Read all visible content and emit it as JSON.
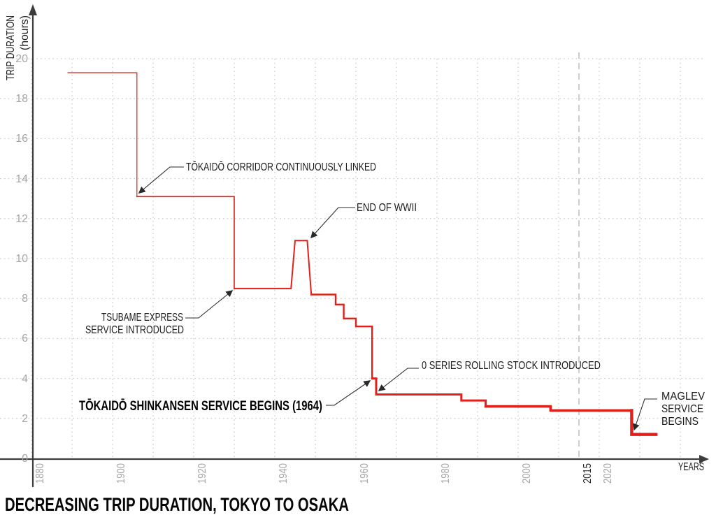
{
  "title": "DECREASING TRIP DURATION, TOKYO TO OSAKA",
  "axes": {
    "x_label": "YEARS",
    "y_label_line1": "TRIP DURATION",
    "y_label_line2": "(hours)"
  },
  "chart_data": {
    "type": "line",
    "subtype": "step",
    "title": "DECREASING TRIP DURATION, TOKYO TO OSAKA",
    "xlabel": "YEARS",
    "ylabel": "TRIP DURATION (hours)",
    "xlim": [
      1880,
      2040
    ],
    "ylim": [
      0,
      20
    ],
    "grid": "dotted, 10-year verticals, 2-hour horizontals",
    "legend_position": "none",
    "line_color": "#e0201a",
    "grid_color": "#cccccc",
    "axis_color": "#3c3c3c",
    "tick_color": "#a6a6a6",
    "reference_line": {
      "year": 2015,
      "style": "dashed",
      "color": "#b9b9b9"
    },
    "x_ticks": [
      "1880",
      "1900",
      "1920",
      "1940",
      "1960",
      "1980",
      "2000",
      "2015",
      "2020"
    ],
    "y_ticks": [
      "0",
      "2",
      "4",
      "6",
      "8",
      "10",
      "12",
      "14",
      "16",
      "18",
      "20"
    ],
    "segments": [
      {
        "width": 1.2,
        "points": [
          [
            1889,
            19.3
          ],
          [
            1906,
            19.3
          ],
          [
            1906,
            13.1
          ]
        ]
      },
      {
        "width": 1.6,
        "points": [
          [
            1906,
            13.1
          ],
          [
            1930,
            13.1
          ],
          [
            1930,
            8.5
          ]
        ]
      },
      {
        "width": 2.0,
        "points": [
          [
            1930,
            8.5
          ],
          [
            1944,
            8.5
          ],
          [
            1945,
            10.9
          ],
          [
            1948,
            10.9
          ],
          [
            1949,
            8.2
          ]
        ]
      },
      {
        "width": 2.4,
        "points": [
          [
            1949,
            8.2
          ],
          [
            1955,
            8.2
          ],
          [
            1955,
            7.7
          ],
          [
            1957,
            7.7
          ],
          [
            1957,
            7.0
          ],
          [
            1960,
            7.0
          ],
          [
            1960,
            6.6
          ],
          [
            1964,
            6.6
          ],
          [
            1964,
            4.0
          ]
        ]
      },
      {
        "width": 3.0,
        "points": [
          [
            1964,
            4.0
          ],
          [
            1965,
            4.0
          ],
          [
            1965,
            3.2
          ],
          [
            1986,
            3.2
          ],
          [
            1986,
            2.9
          ],
          [
            1992,
            2.9
          ],
          [
            1992,
            2.6
          ]
        ]
      },
      {
        "width": 3.6,
        "points": [
          [
            1992,
            2.6
          ],
          [
            2008,
            2.6
          ],
          [
            2008,
            2.4
          ],
          [
            2028,
            2.4
          ]
        ]
      },
      {
        "width": 4.4,
        "points": [
          [
            2028,
            2.4
          ],
          [
            2028,
            1.2
          ],
          [
            2034,
            1.2
          ]
        ]
      }
    ],
    "annotations": [
      {
        "label": "TŌKAIDŌ CORRIDOR CONTINUOUSLY LINKED",
        "target_year": 1906,
        "target_hours": 13.1
      },
      {
        "label": "TSUBAME EXPRESS SERVICE INTRODUCED",
        "target_year": 1930,
        "target_hours": 8.5
      },
      {
        "label": "END OF WWII",
        "target_year": 1948,
        "target_hours": 10.9
      },
      {
        "label": "TŌKAIDŌ SHINKANSEN SERVICE BEGINS (1964)",
        "target_year": 1964,
        "target_hours": 4.0
      },
      {
        "label": "0 SERIES ROLLING STOCK INTRODUCED",
        "target_year": 1965,
        "target_hours": 3.2
      },
      {
        "label": "MAGLEV SERVICE BEGINS",
        "target_year": 2028,
        "target_hours": 1.2
      }
    ]
  },
  "annotation_text": {
    "corridor": "TŌKAIDŌ CORRIDOR CONTINUOUSLY LINKED",
    "tsubame_line1": "TSUBAME EXPRESS",
    "tsubame_line2": "SERVICE INTRODUCED",
    "wwii": "END OF WWII",
    "shinkansen": "TŌKAIDŌ SHINKANSEN SERVICE BEGINS (1964)",
    "series0": "0 SERIES ROLLING STOCK INTRODUCED",
    "maglev_line1": "MAGLEV",
    "maglev_line2": "SERVICE",
    "maglev_line3": "BEGINS"
  }
}
